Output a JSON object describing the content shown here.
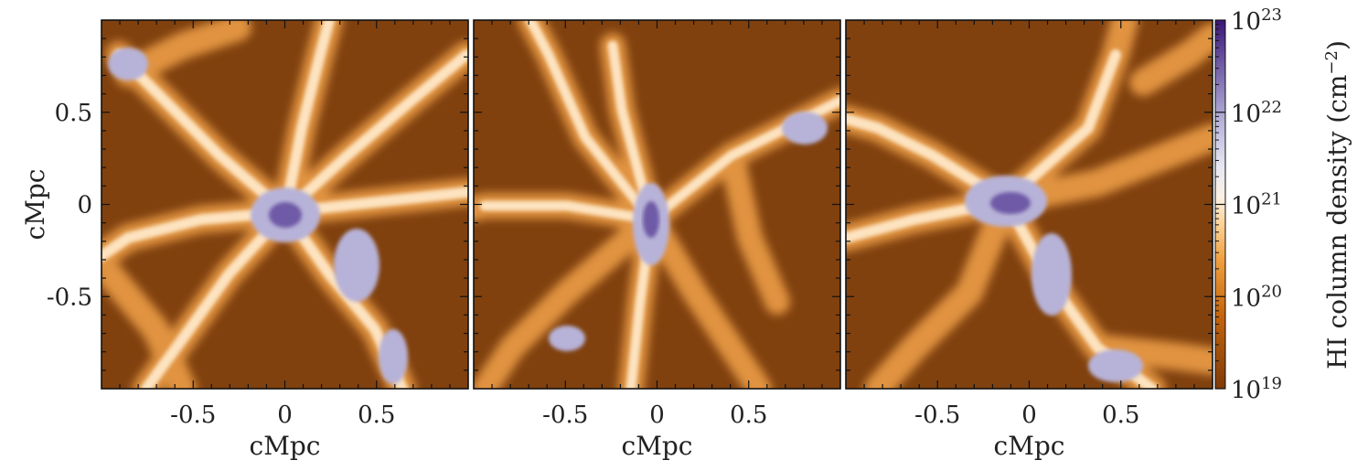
{
  "chart_data": [
    {
      "type": "heatmap",
      "panel": 1,
      "xlabel": "cMpc",
      "ylabel": "cMpc",
      "xlim": [
        -1.0,
        1.0
      ],
      "ylim": [
        -1.0,
        1.0
      ],
      "xticks": [
        -0.5,
        0,
        0.5
      ],
      "xtick_labels": [
        "-0.5",
        "0",
        "0.5"
      ],
      "yticks": [
        0.5,
        0,
        -0.5
      ],
      "ytick_labels": [
        "0.5",
        "0",
        "-0.5"
      ],
      "description": "HI column density projection; cosmic web filaments radiating from a central dense halo near (0, -0.05)"
    },
    {
      "type": "heatmap",
      "panel": 2,
      "xlabel": "cMpc",
      "ylabel": "",
      "xlim": [
        -1.0,
        1.0
      ],
      "ylim": [
        -1.0,
        1.0
      ],
      "xticks": [
        -0.5,
        0,
        0.5
      ],
      "xtick_labels": [
        "-0.5",
        "0",
        "0.5"
      ],
      "yticks": [],
      "ytick_labels": []
    },
    {
      "type": "heatmap",
      "panel": 3,
      "xlabel": "cMpc",
      "ylabel": "",
      "xlim": [
        -1.0,
        1.0
      ],
      "ylim": [
        -1.0,
        1.0
      ],
      "xticks": [
        -0.5,
        0,
        0.5
      ],
      "xtick_labels": [
        "-0.5",
        "0",
        "0.5"
      ],
      "yticks": [],
      "ytick_labels": []
    }
  ],
  "colorbar": {
    "label": "HI column density (cm",
    "label_exp": "−2",
    "label_end": ")",
    "scale": "log",
    "range": [
      1e+19,
      1e+23
    ],
    "ticks": [
      {
        "base": "10",
        "exp": "23",
        "value": 1e+23
      },
      {
        "base": "10",
        "exp": "22",
        "value": 1e+22
      },
      {
        "base": "10",
        "exp": "21",
        "value": 1e+21
      },
      {
        "base": "10",
        "exp": "20",
        "value": 1e+20
      },
      {
        "base": "10",
        "exp": "19",
        "value": 1e+19
      }
    ],
    "colors": [
      "#7f3b08",
      "#b35806",
      "#e08214",
      "#fdb863",
      "#fee0b6",
      "#f7f7f7",
      "#d8daeb",
      "#b2abd2",
      "#8073ac",
      "#542788",
      "#2d004b"
    ]
  }
}
